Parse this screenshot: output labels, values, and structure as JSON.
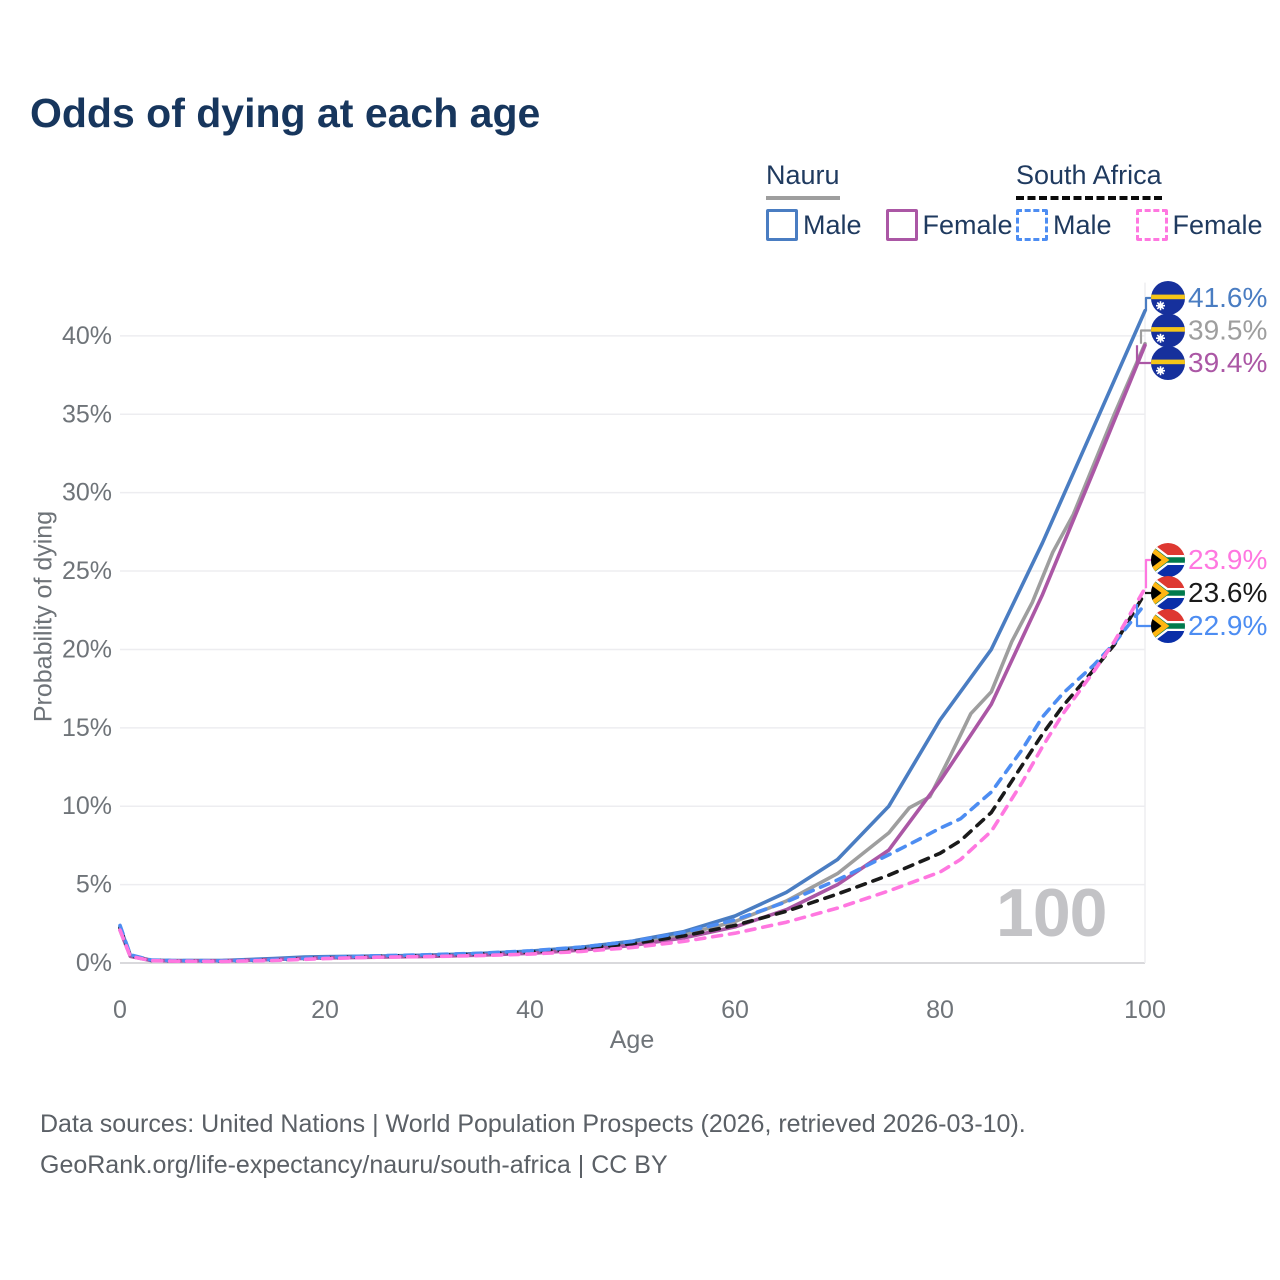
{
  "title": "Odds of dying at each age",
  "watermark": "100",
  "footer": {
    "line1": "Data sources: United Nations | World Population Prospects (2026, retrieved 2026-03-10).",
    "line2": "GeoRank.org/life-expectancy/nauru/south-africa | CC BY"
  },
  "legend": {
    "groups": [
      {
        "label": "Nauru",
        "underline_style": "solid",
        "underline_color": "#9e9e9e",
        "items": [
          {
            "label": "Male",
            "color": "#4a7dc2",
            "dashed": false
          },
          {
            "label": "Female",
            "color": "#ab57a5",
            "dashed": false
          }
        ]
      },
      {
        "label": "South Africa",
        "underline_style": "dashed",
        "underline_color": "#0a0a0a",
        "items": [
          {
            "label": "Male",
            "color": "#4d8df2",
            "dashed": true
          },
          {
            "label": "Female",
            "color": "#ff77e0",
            "dashed": true
          }
        ]
      }
    ]
  },
  "chart_data": {
    "type": "line",
    "title": "Odds of dying at each age",
    "xlabel": "Age",
    "ylabel": "Probability of dying",
    "xlim": [
      0,
      100
    ],
    "ylim": [
      0,
      43
    ],
    "x_ticks": [
      0,
      20,
      40,
      60,
      80,
      100
    ],
    "y_ticks": [
      0,
      5,
      10,
      15,
      20,
      25,
      30,
      35,
      40
    ],
    "y_tick_labels": [
      "0%",
      "5%",
      "10%",
      "15%",
      "20%",
      "25%",
      "30%",
      "35%",
      "40%"
    ],
    "grid": true,
    "legend_position": "top-right",
    "series": [
      {
        "name": "Nauru Total",
        "country": "Nauru",
        "sex": "total",
        "color": "#9e9e9e",
        "dashed": false,
        "end_label": "39.5%",
        "points": [
          [
            0,
            2.2
          ],
          [
            1,
            0.46
          ],
          [
            3,
            0.17
          ],
          [
            5,
            0.14
          ],
          [
            10,
            0.15
          ],
          [
            15,
            0.25
          ],
          [
            18,
            0.34
          ],
          [
            20,
            0.36
          ],
          [
            25,
            0.41
          ],
          [
            30,
            0.46
          ],
          [
            35,
            0.55
          ],
          [
            40,
            0.69
          ],
          [
            45,
            0.92
          ],
          [
            50,
            1.27
          ],
          [
            55,
            1.8
          ],
          [
            60,
            2.65
          ],
          [
            65,
            3.95
          ],
          [
            70,
            5.7
          ],
          [
            75,
            8.3
          ],
          [
            77,
            9.9
          ],
          [
            79,
            10.6
          ],
          [
            81,
            13.2
          ],
          [
            83,
            15.9
          ],
          [
            85,
            17.3
          ],
          [
            87,
            20.5
          ],
          [
            89,
            23.0
          ],
          [
            91,
            26.2
          ],
          [
            93,
            28.6
          ],
          [
            95,
            31.8
          ],
          [
            97,
            35.0
          ],
          [
            100,
            39.5
          ]
        ]
      },
      {
        "name": "Nauru Male",
        "country": "Nauru",
        "sex": "male",
        "color": "#4a7dc2",
        "dashed": false,
        "end_label": "41.6%",
        "points": [
          [
            0,
            2.3
          ],
          [
            1,
            0.5
          ],
          [
            3,
            0.18
          ],
          [
            5,
            0.15
          ],
          [
            10,
            0.16
          ],
          [
            15,
            0.28
          ],
          [
            18,
            0.38
          ],
          [
            20,
            0.4
          ],
          [
            25,
            0.44
          ],
          [
            30,
            0.5
          ],
          [
            35,
            0.6
          ],
          [
            40,
            0.75
          ],
          [
            45,
            1.0
          ],
          [
            50,
            1.4
          ],
          [
            55,
            2.0
          ],
          [
            60,
            3.0
          ],
          [
            65,
            4.5
          ],
          [
            70,
            6.6
          ],
          [
            75,
            10.0
          ],
          [
            80,
            15.5
          ],
          [
            85,
            20.0
          ],
          [
            90,
            26.8
          ],
          [
            95,
            34.2
          ],
          [
            100,
            41.6
          ]
        ]
      },
      {
        "name": "Nauru Female",
        "country": "Nauru",
        "sex": "female",
        "color": "#ab57a5",
        "dashed": false,
        "end_label": "39.4%",
        "points": [
          [
            0,
            2.1
          ],
          [
            1,
            0.42
          ],
          [
            3,
            0.16
          ],
          [
            5,
            0.13
          ],
          [
            10,
            0.14
          ],
          [
            15,
            0.22
          ],
          [
            18,
            0.3
          ],
          [
            20,
            0.32
          ],
          [
            25,
            0.37
          ],
          [
            30,
            0.42
          ],
          [
            35,
            0.5
          ],
          [
            40,
            0.62
          ],
          [
            45,
            0.82
          ],
          [
            50,
            1.12
          ],
          [
            55,
            1.6
          ],
          [
            60,
            2.3
          ],
          [
            65,
            3.4
          ],
          [
            70,
            5.0
          ],
          [
            75,
            7.2
          ],
          [
            80,
            11.6
          ],
          [
            85,
            16.5
          ],
          [
            90,
            23.5
          ],
          [
            95,
            31.4
          ],
          [
            100,
            39.4
          ]
        ]
      },
      {
        "name": "South Africa Total",
        "country": "South Africa",
        "sex": "total",
        "color": "#1a1a1a",
        "dashed": true,
        "end_label": "23.6%",
        "points": [
          [
            0,
            2.25
          ],
          [
            1,
            0.47
          ],
          [
            3,
            0.17
          ],
          [
            5,
            0.14
          ],
          [
            10,
            0.12
          ],
          [
            15,
            0.19
          ],
          [
            20,
            0.33
          ],
          [
            25,
            0.43
          ],
          [
            30,
            0.48
          ],
          [
            35,
            0.57
          ],
          [
            40,
            0.71
          ],
          [
            45,
            0.92
          ],
          [
            50,
            1.24
          ],
          [
            55,
            1.73
          ],
          [
            60,
            2.4
          ],
          [
            65,
            3.3
          ],
          [
            70,
            4.4
          ],
          [
            75,
            5.6
          ],
          [
            80,
            7.0
          ],
          [
            82,
            7.8
          ],
          [
            85,
            9.6
          ],
          [
            88,
            12.6
          ],
          [
            90,
            14.6
          ],
          [
            92,
            16.4
          ],
          [
            95,
            18.7
          ],
          [
            97,
            20.3
          ],
          [
            100,
            23.6
          ]
        ]
      },
      {
        "name": "South Africa Male",
        "country": "South Africa",
        "sex": "male",
        "color": "#4d8df2",
        "dashed": true,
        "end_label": "22.9%",
        "points": [
          [
            0,
            2.4
          ],
          [
            1,
            0.52
          ],
          [
            3,
            0.19
          ],
          [
            5,
            0.15
          ],
          [
            10,
            0.14
          ],
          [
            15,
            0.22
          ],
          [
            20,
            0.36
          ],
          [
            25,
            0.46
          ],
          [
            30,
            0.52
          ],
          [
            35,
            0.62
          ],
          [
            40,
            0.78
          ],
          [
            45,
            1.02
          ],
          [
            50,
            1.38
          ],
          [
            55,
            1.95
          ],
          [
            60,
            2.75
          ],
          [
            65,
            3.9
          ],
          [
            70,
            5.3
          ],
          [
            75,
            6.9
          ],
          [
            78,
            7.9
          ],
          [
            80,
            8.6
          ],
          [
            82,
            9.2
          ],
          [
            85,
            10.9
          ],
          [
            88,
            13.6
          ],
          [
            90,
            15.7
          ],
          [
            92,
            17.2
          ],
          [
            95,
            19.0
          ],
          [
            97,
            20.4
          ],
          [
            100,
            22.9
          ]
        ]
      },
      {
        "name": "South Africa Female",
        "country": "South Africa",
        "sex": "female",
        "color": "#ff77e0",
        "dashed": true,
        "end_label": "23.9%",
        "points": [
          [
            0,
            2.1
          ],
          [
            1,
            0.43
          ],
          [
            3,
            0.15
          ],
          [
            5,
            0.12
          ],
          [
            10,
            0.1
          ],
          [
            15,
            0.16
          ],
          [
            20,
            0.28
          ],
          [
            25,
            0.37
          ],
          [
            30,
            0.41
          ],
          [
            35,
            0.47
          ],
          [
            40,
            0.57
          ],
          [
            45,
            0.74
          ],
          [
            50,
            0.99
          ],
          [
            55,
            1.38
          ],
          [
            60,
            1.9
          ],
          [
            65,
            2.6
          ],
          [
            70,
            3.5
          ],
          [
            75,
            4.6
          ],
          [
            80,
            5.8
          ],
          [
            82,
            6.6
          ],
          [
            85,
            8.4
          ],
          [
            88,
            11.5
          ],
          [
            90,
            13.8
          ],
          [
            92,
            15.9
          ],
          [
            95,
            18.6
          ],
          [
            97,
            20.5
          ],
          [
            100,
            23.9
          ]
        ]
      }
    ]
  }
}
